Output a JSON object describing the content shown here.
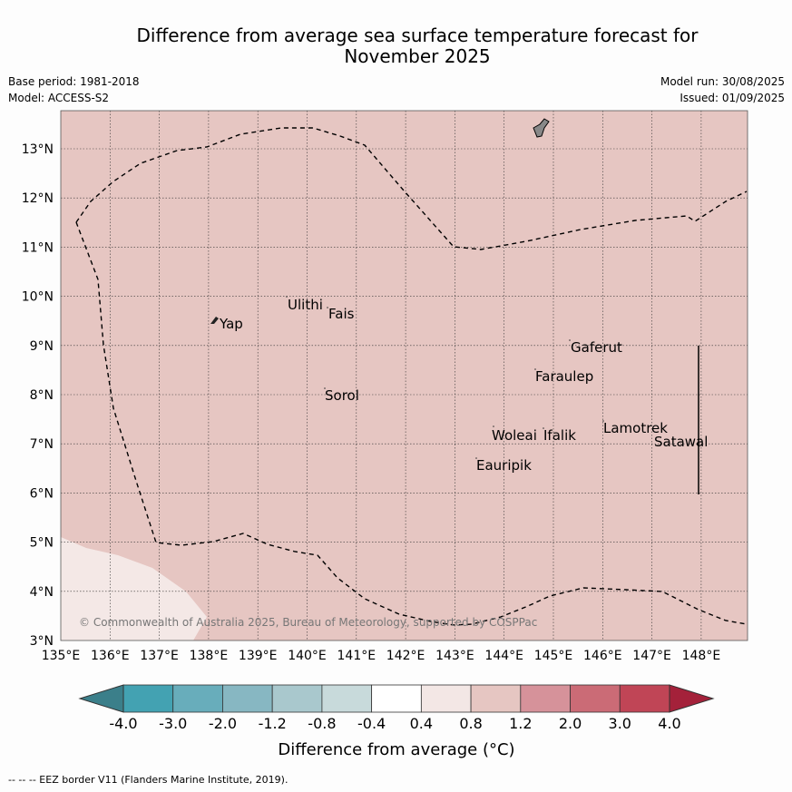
{
  "title": {
    "line1": "Difference from average sea surface temperature forecast for",
    "line2": "November 2025"
  },
  "meta": {
    "base_period": "Base period: 1981-2018",
    "model": "Model: ACCESS-S2",
    "model_run": "Model run: 30/08/2025",
    "issued": "Issued: 01/09/2025"
  },
  "map": {
    "lon_labels": [
      "135°E",
      "136°E",
      "137°E",
      "138°E",
      "139°E",
      "140°E",
      "141°E",
      "142°E",
      "143°E",
      "144°E",
      "145°E",
      "146°E",
      "147°E",
      "148°E"
    ],
    "lat_labels": [
      "13°N",
      "12°N",
      "11°N",
      "10°N",
      "9°N",
      "8°N",
      "7°N",
      "6°N",
      "5°N",
      "4°N",
      "3°N"
    ],
    "background_color": "#e6c6c2",
    "light_region_color": "#f4e8e6",
    "places": [
      "Ulithi",
      "Fais",
      "Yap",
      "Gaferut",
      "Faraulep",
      "Sorol",
      "Lamotrek",
      "Woleai",
      "Ifalik",
      "Satawal",
      "Eauripik"
    ],
    "copyright": "© Commonwealth of Australia 2025, Bureau of Meteorology, supported by COSPPac"
  },
  "colorbar": {
    "tick_labels": [
      "-4.0",
      "-3.0",
      "-2.0",
      "-1.2",
      "-0.8",
      "-0.4",
      "0.4",
      "0.8",
      "1.2",
      "2.0",
      "3.0",
      "4.0"
    ],
    "colors": [
      "#43a2b2",
      "#68adbb",
      "#87b7c2",
      "#a9c8cd",
      "#c8dadb",
      "#ffffff",
      "#f3e7e5",
      "#e6c6c2",
      "#d6929a",
      "#cb6b76",
      "#c04556"
    ],
    "under_color": "#3b7f8a",
    "over_color": "#a4213a",
    "label": "Difference from average (°C)"
  },
  "footer": {
    "legend": "-- -- -- EEZ border V11 (Flanders Marine Institute, 2019)."
  }
}
